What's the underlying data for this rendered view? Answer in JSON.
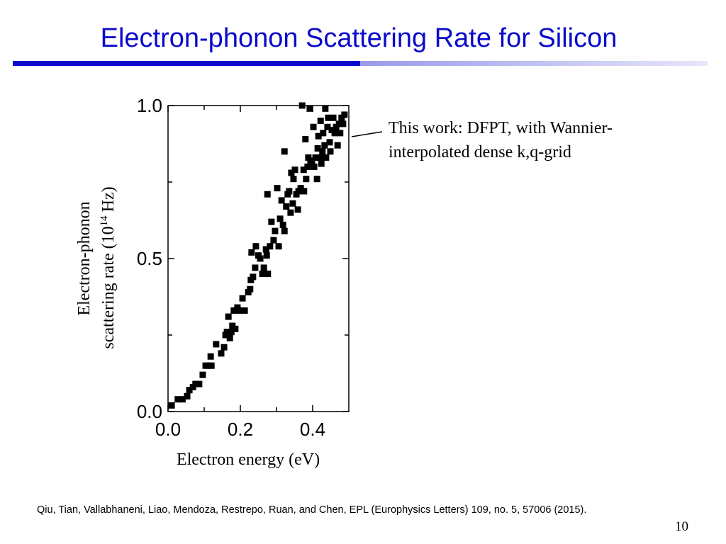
{
  "header": {
    "title": "Electron-phonon Scattering Rate for Silicon"
  },
  "footer": {
    "citation": "Qiu, Tian, Vallabhaneni, Liao, Mendoza, Restrepo, Ruan, and Chen, EPL (Europhysics Letters) 109, no. 5, 57006 (2015).",
    "page_number": "10"
  },
  "chart_data": {
    "type": "scatter",
    "color": "#000000",
    "xlabel": "Electron energy (eV)",
    "ylabel": [
      "Electron-phonon",
      "scattering rate (10",
      "14",
      "Hz)"
    ],
    "annotation": [
      "This work: DFPT, with Wannier-",
      "interpolated dense k,q-grid"
    ],
    "xlim": [
      0,
      0.5
    ],
    "ylim": [
      0,
      1
    ],
    "xticks": [
      {
        "value": 0,
        "label": "0.0"
      },
      0.2,
      0.4
    ],
    "yticks": [
      {
        "value": 0,
        "label": "0.0"
      },
      0.5,
      {
        "value": 1,
        "label": "1.0"
      }
    ],
    "xminorticks": [
      0.1,
      0.3
    ],
    "yminorticks": [
      0.25,
      0.75
    ],
    "x": [
      0.01,
      0.027,
      0.04,
      0.053,
      0.059,
      0.069,
      0.076,
      0.086,
      0.096,
      0.104,
      0.112,
      0.118,
      0.12,
      0.133,
      0.147,
      0.155,
      0.159,
      0.163,
      0.167,
      0.171,
      0.175,
      0.178,
      0.182,
      0.186,
      0.192,
      0.198,
      0.206,
      0.212,
      0.222,
      0.227,
      0.229,
      0.235,
      0.231,
      0.241,
      0.243,
      0.25,
      0.255,
      0.261,
      0.265,
      0.271,
      0.273,
      0.276,
      0.275,
      0.282,
      0.286,
      0.292,
      0.296,
      0.302,
      0.306,
      0.31,
      0.314,
      0.318,
      0.322,
      0.322,
      0.327,
      0.331,
      0.335,
      0.339,
      0.341,
      0.345,
      0.347,
      0.351,
      0.355,
      0.359,
      0.361,
      0.367,
      0.371,
      0.375,
      0.376,
      0.38,
      0.382,
      0.386,
      0.388,
      0.392,
      0.394,
      0.398,
      0.402,
      0.404,
      0.408,
      0.412,
      0.414,
      0.416,
      0.42,
      0.422,
      0.424,
      0.427,
      0.429,
      0.433,
      0.435,
      0.437,
      0.441,
      0.443,
      0.447,
      0.449,
      0.453,
      0.457,
      0.461,
      0.465,
      0.469,
      0.473,
      0.476,
      0.48,
      0.484,
      0.488
    ],
    "values": [
      0.02,
      0.04,
      0.04,
      0.05,
      0.07,
      0.08,
      0.09,
      0.09,
      0.12,
      0.15,
      0.15,
      0.18,
      0.15,
      0.22,
      0.19,
      0.21,
      0.25,
      0.26,
      0.31,
      0.24,
      0.26,
      0.28,
      0.33,
      0.27,
      0.34,
      0.33,
      0.37,
      0.33,
      0.39,
      0.4,
      0.43,
      0.44,
      0.52,
      0.47,
      0.54,
      0.51,
      0.5,
      0.45,
      0.47,
      0.53,
      0.51,
      0.45,
      0.71,
      0.54,
      0.62,
      0.56,
      0.59,
      0.73,
      0.54,
      0.63,
      0.69,
      0.61,
      0.85,
      0.59,
      0.67,
      0.71,
      0.72,
      0.65,
      0.78,
      0.68,
      0.76,
      0.79,
      0.71,
      0.66,
      0.72,
      0.73,
      1.0,
      0.79,
      0.72,
      0.89,
      0.76,
      0.8,
      0.83,
      0.99,
      0.81,
      0.82,
      0.93,
      0.8,
      0.83,
      0.76,
      0.86,
      0.9,
      0.83,
      0.95,
      0.81,
      0.85,
      0.91,
      0.87,
      0.99,
      0.83,
      0.93,
      0.96,
      0.88,
      0.85,
      0.92,
      0.96,
      0.91,
      0.93,
      0.87,
      0.94,
      0.91,
      0.96,
      0.94,
      0.97
    ]
  }
}
